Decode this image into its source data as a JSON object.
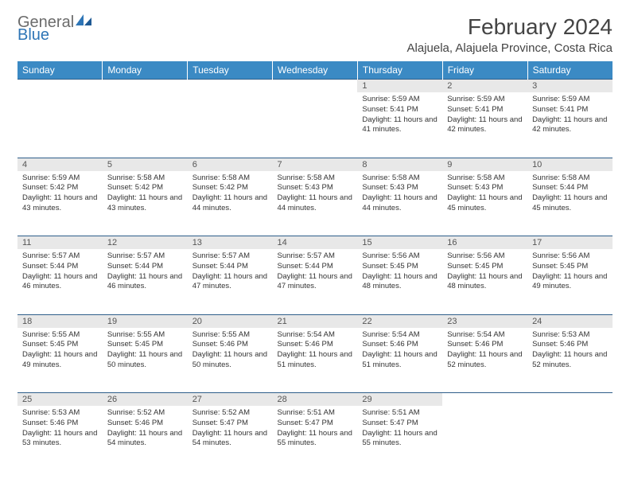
{
  "logo": {
    "part1": "General",
    "part2": "Blue"
  },
  "title": "February 2024",
  "location": "Alajuela, Alajuela Province, Costa Rica",
  "colors": {
    "header_bg": "#3b8ac4",
    "header_text": "#ffffff",
    "daynum_bg": "#e8e8e8",
    "border": "#2e5e8a",
    "logo_gray": "#6b6b6b",
    "logo_blue": "#2e75b6"
  },
  "dayHeaders": [
    "Sunday",
    "Monday",
    "Tuesday",
    "Wednesday",
    "Thursday",
    "Friday",
    "Saturday"
  ],
  "weeks": [
    [
      null,
      null,
      null,
      null,
      {
        "n": "1",
        "sunrise": "5:59 AM",
        "sunset": "5:41 PM",
        "daylight": "11 hours and 41 minutes."
      },
      {
        "n": "2",
        "sunrise": "5:59 AM",
        "sunset": "5:41 PM",
        "daylight": "11 hours and 42 minutes."
      },
      {
        "n": "3",
        "sunrise": "5:59 AM",
        "sunset": "5:41 PM",
        "daylight": "11 hours and 42 minutes."
      }
    ],
    [
      {
        "n": "4",
        "sunrise": "5:59 AM",
        "sunset": "5:42 PM",
        "daylight": "11 hours and 43 minutes."
      },
      {
        "n": "5",
        "sunrise": "5:58 AM",
        "sunset": "5:42 PM",
        "daylight": "11 hours and 43 minutes."
      },
      {
        "n": "6",
        "sunrise": "5:58 AM",
        "sunset": "5:42 PM",
        "daylight": "11 hours and 44 minutes."
      },
      {
        "n": "7",
        "sunrise": "5:58 AM",
        "sunset": "5:43 PM",
        "daylight": "11 hours and 44 minutes."
      },
      {
        "n": "8",
        "sunrise": "5:58 AM",
        "sunset": "5:43 PM",
        "daylight": "11 hours and 44 minutes."
      },
      {
        "n": "9",
        "sunrise": "5:58 AM",
        "sunset": "5:43 PM",
        "daylight": "11 hours and 45 minutes."
      },
      {
        "n": "10",
        "sunrise": "5:58 AM",
        "sunset": "5:44 PM",
        "daylight": "11 hours and 45 minutes."
      }
    ],
    [
      {
        "n": "11",
        "sunrise": "5:57 AM",
        "sunset": "5:44 PM",
        "daylight": "11 hours and 46 minutes."
      },
      {
        "n": "12",
        "sunrise": "5:57 AM",
        "sunset": "5:44 PM",
        "daylight": "11 hours and 46 minutes."
      },
      {
        "n": "13",
        "sunrise": "5:57 AM",
        "sunset": "5:44 PM",
        "daylight": "11 hours and 47 minutes."
      },
      {
        "n": "14",
        "sunrise": "5:57 AM",
        "sunset": "5:44 PM",
        "daylight": "11 hours and 47 minutes."
      },
      {
        "n": "15",
        "sunrise": "5:56 AM",
        "sunset": "5:45 PM",
        "daylight": "11 hours and 48 minutes."
      },
      {
        "n": "16",
        "sunrise": "5:56 AM",
        "sunset": "5:45 PM",
        "daylight": "11 hours and 48 minutes."
      },
      {
        "n": "17",
        "sunrise": "5:56 AM",
        "sunset": "5:45 PM",
        "daylight": "11 hours and 49 minutes."
      }
    ],
    [
      {
        "n": "18",
        "sunrise": "5:55 AM",
        "sunset": "5:45 PM",
        "daylight": "11 hours and 49 minutes."
      },
      {
        "n": "19",
        "sunrise": "5:55 AM",
        "sunset": "5:45 PM",
        "daylight": "11 hours and 50 minutes."
      },
      {
        "n": "20",
        "sunrise": "5:55 AM",
        "sunset": "5:46 PM",
        "daylight": "11 hours and 50 minutes."
      },
      {
        "n": "21",
        "sunrise": "5:54 AM",
        "sunset": "5:46 PM",
        "daylight": "11 hours and 51 minutes."
      },
      {
        "n": "22",
        "sunrise": "5:54 AM",
        "sunset": "5:46 PM",
        "daylight": "11 hours and 51 minutes."
      },
      {
        "n": "23",
        "sunrise": "5:54 AM",
        "sunset": "5:46 PM",
        "daylight": "11 hours and 52 minutes."
      },
      {
        "n": "24",
        "sunrise": "5:53 AM",
        "sunset": "5:46 PM",
        "daylight": "11 hours and 52 minutes."
      }
    ],
    [
      {
        "n": "25",
        "sunrise": "5:53 AM",
        "sunset": "5:46 PM",
        "daylight": "11 hours and 53 minutes."
      },
      {
        "n": "26",
        "sunrise": "5:52 AM",
        "sunset": "5:46 PM",
        "daylight": "11 hours and 54 minutes."
      },
      {
        "n": "27",
        "sunrise": "5:52 AM",
        "sunset": "5:47 PM",
        "daylight": "11 hours and 54 minutes."
      },
      {
        "n": "28",
        "sunrise": "5:51 AM",
        "sunset": "5:47 PM",
        "daylight": "11 hours and 55 minutes."
      },
      {
        "n": "29",
        "sunrise": "5:51 AM",
        "sunset": "5:47 PM",
        "daylight": "11 hours and 55 minutes."
      },
      null,
      null
    ]
  ],
  "labels": {
    "sunrise": "Sunrise: ",
    "sunset": "Sunset: ",
    "daylight": "Daylight: "
  }
}
